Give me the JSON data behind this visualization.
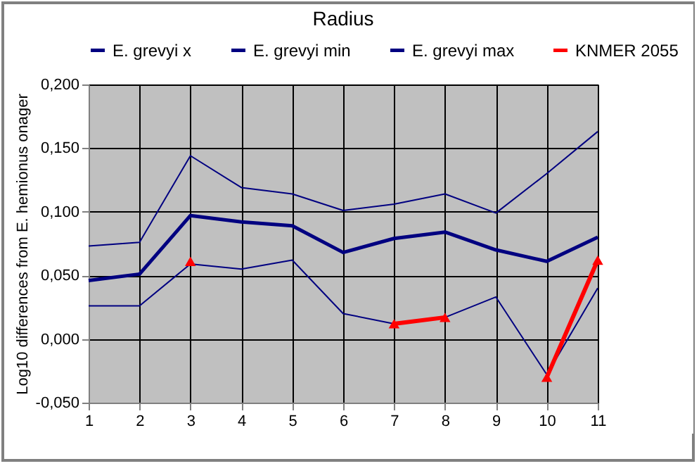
{
  "chart_data": {
    "type": "line",
    "title": "Radius",
    "ylabel": "Log10 differences from E. hemionus onager",
    "x": [
      1,
      2,
      3,
      4,
      5,
      6,
      7,
      8,
      9,
      10,
      11
    ],
    "xlim": [
      1,
      11
    ],
    "xticks": [
      1,
      2,
      3,
      4,
      5,
      6,
      7,
      8,
      9,
      10,
      11
    ],
    "ylim": [
      -0.05,
      0.2
    ],
    "yticks": [
      {
        "value": -0.05,
        "label": "-0,050"
      },
      {
        "value": 0,
        "label": "0,000"
      },
      {
        "value": 0.05,
        "label": "0,050"
      },
      {
        "value": 0.1,
        "label": "0,100"
      },
      {
        "value": 0.15,
        "label": "0,150"
      },
      {
        "value": 0.2,
        "label": "0,200"
      }
    ],
    "grid": true,
    "legend": "top",
    "marker": "none",
    "series": [
      {
        "name": "E. grevyi x",
        "color": "#000080",
        "values": [
          0.046,
          0.051,
          0.097,
          0.092,
          0.089,
          0.068,
          0.079,
          0.084,
          0.07,
          0.061,
          0.08
        ]
      },
      {
        "name": "E. grevyi min",
        "color": "#000080",
        "values": [
          0.026,
          0.026,
          0.059,
          0.055,
          0.062,
          0.02,
          0.012,
          0.017,
          0.033,
          -0.028,
          0.04
        ]
      },
      {
        "name": "E. grevyi max",
        "color": "#000080",
        "values": [
          0.073,
          0.076,
          0.144,
          0.119,
          0.114,
          0.101,
          0.106,
          0.114,
          0.099,
          0.13,
          0.163
        ]
      },
      {
        "name": "KNMER 2055",
        "color": "#ff0000",
        "marker": "triangle",
        "values": [
          null,
          null,
          0.061,
          null,
          null,
          null,
          0.012,
          0.017,
          null,
          -0.03,
          0.062
        ]
      }
    ]
  }
}
